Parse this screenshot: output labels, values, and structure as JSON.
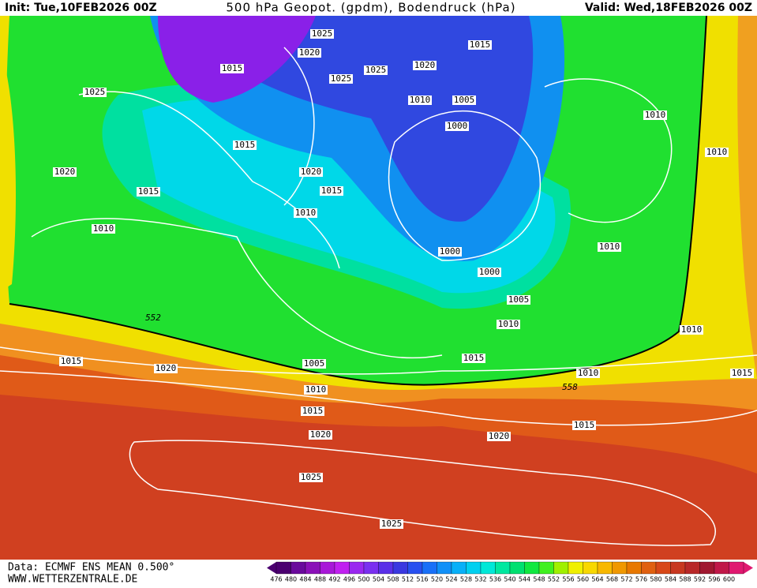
{
  "header": {
    "init": "Init: Tue,10FEB2026 00Z",
    "title": "500 hPa Geopot. (gpdm), Bodendruck (hPa)",
    "valid": "Valid: Wed,18FEB2026 00Z"
  },
  "footer": {
    "source": "Data: ECMWF ENS MEAN 0.500°",
    "site": "WWW.WETTERZENTRALE.DE"
  },
  "pressure_labels": [
    1025,
    1020,
    1015,
    1015,
    1020,
    1025,
    1025,
    1010,
    1005,
    1025,
    1000,
    1010,
    1015,
    1010,
    1020,
    1020,
    1015,
    1015,
    1010,
    1010,
    1000,
    1010,
    1000,
    1005,
    1010,
    1010,
    1015,
    1005,
    1015,
    1020,
    1010,
    1015,
    1010,
    1015,
    1015,
    1020,
    1020,
    1025,
    1025
  ],
  "geopotential_labels": [
    552,
    558
  ],
  "legend": {
    "values": [
      476,
      480,
      484,
      488,
      492,
      496,
      500,
      504,
      508,
      512,
      516,
      520,
      524,
      528,
      532,
      536,
      540,
      544,
      548,
      552,
      556,
      560,
      564,
      568,
      572,
      576,
      580,
      584,
      588,
      592,
      596,
      600
    ],
    "colors": [
      "#4b0070",
      "#6a0a9c",
      "#8a10b8",
      "#a818d8",
      "#c020f0",
      "#9a28f0",
      "#7a30f0",
      "#5a30e8",
      "#3a38e0",
      "#2850f0",
      "#1870f8",
      "#1090f8",
      "#08b0f8",
      "#00d0f0",
      "#00e8d8",
      "#00e8a0",
      "#00e070",
      "#10e840",
      "#40f020",
      "#a0f000",
      "#f0f000",
      "#f8d800",
      "#f8b800",
      "#f09800",
      "#e87800",
      "#e06010",
      "#d84818",
      "#c83820",
      "#b82828",
      "#a01830",
      "#c01848",
      "#e01870"
    ]
  }
}
